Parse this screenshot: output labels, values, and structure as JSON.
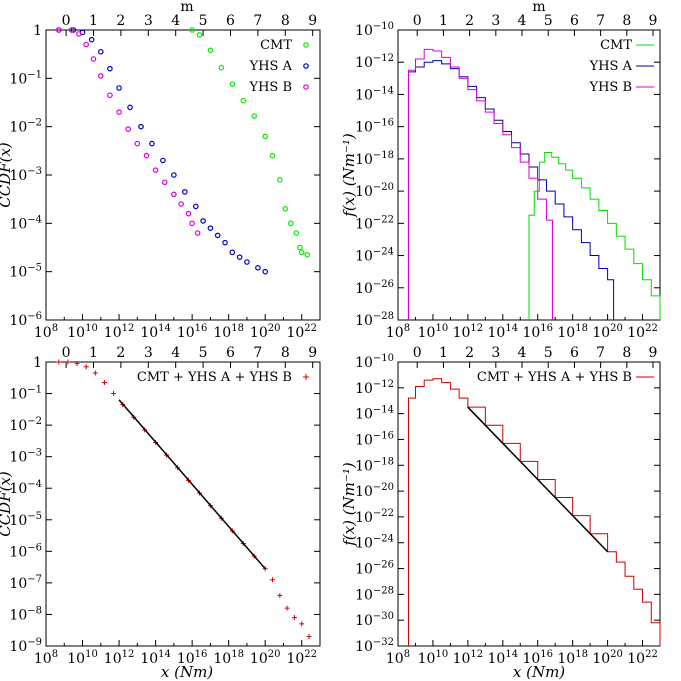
{
  "figure": {
    "top_axis_label": "m",
    "x_label_bottom": "x (Nm)",
    "top_axis_ticks": [
      "0",
      "1",
      "2",
      "3",
      "4",
      "5",
      "6",
      "7",
      "8",
      "9"
    ]
  },
  "chart_data": [
    {
      "id": "ccdf-by-catalog",
      "type": "scatter",
      "ylabel": "CCDF(x)",
      "xscale": "log",
      "yscale": "log",
      "xlim_log10": [
        8,
        23
      ],
      "ylim_log10": [
        -6,
        0
      ],
      "x_ticks": [
        "10^8",
        "10^10",
        "10^12",
        "10^14",
        "10^16",
        "10^18",
        "10^20",
        "10^22"
      ],
      "y_ticks": [
        "10^-6",
        "10^-5",
        "10^-4",
        "10^-3",
        "10^-2",
        "10^-1",
        "1"
      ],
      "top_axis": "m",
      "legend": "top-right",
      "series": [
        {
          "name": "CMT",
          "color": "#00ee00",
          "marker": "circle",
          "log10_x": [
            16.0,
            16.4,
            17.0,
            17.6,
            18.2,
            18.8,
            19.4,
            20.0,
            20.4,
            20.8,
            21.1,
            21.4,
            21.7,
            21.9,
            22.0,
            22.3
          ],
          "log10_ccdf": [
            0.0,
            -0.1,
            -0.42,
            -0.78,
            -1.12,
            -1.46,
            -1.78,
            -2.2,
            -2.6,
            -3.1,
            -3.7,
            -4.0,
            -4.2,
            -4.5,
            -4.6,
            -4.65
          ]
        },
        {
          "name": "YHS A",
          "color": "#0000cc",
          "marker": "circle",
          "log10_x": [
            8.7,
            9.5,
            10.0,
            10.5,
            11.0,
            11.5,
            12.0,
            12.6,
            13.2,
            13.8,
            14.4,
            15.0,
            15.6,
            16.2,
            16.6,
            17.0,
            17.4,
            17.8,
            18.2,
            18.6,
            19.0,
            19.6,
            20.0
          ],
          "log10_ccdf": [
            0.0,
            0.0,
            -0.05,
            -0.2,
            -0.45,
            -0.8,
            -1.2,
            -1.6,
            -2.0,
            -2.35,
            -2.7,
            -3.0,
            -3.35,
            -3.65,
            -3.95,
            -4.1,
            -4.25,
            -4.4,
            -4.6,
            -4.7,
            -4.8,
            -4.92,
            -5.0
          ]
        },
        {
          "name": "YHS B",
          "color": "#dd00dd",
          "marker": "circle",
          "log10_x": [
            8.7,
            9.4,
            9.8,
            10.2,
            10.6,
            11.0,
            11.5,
            12.0,
            12.5,
            13.0,
            13.5,
            14.0,
            14.5,
            15.0,
            15.4,
            15.8,
            16.0,
            16.3
          ],
          "log10_ccdf": [
            0.0,
            0.0,
            -0.08,
            -0.3,
            -0.6,
            -0.95,
            -1.35,
            -1.7,
            -2.05,
            -2.35,
            -2.6,
            -2.9,
            -3.15,
            -3.4,
            -3.6,
            -3.8,
            -4.0,
            -4.2
          ]
        }
      ]
    },
    {
      "id": "pdf-by-catalog",
      "type": "line",
      "ylabel": "f(x) (Nm^-1)",
      "xscale": "log",
      "yscale": "log",
      "xlim_log10": [
        8,
        23
      ],
      "ylim_log10": [
        -28,
        -10
      ],
      "x_ticks": [
        "10^8",
        "10^10",
        "10^12",
        "10^14",
        "10^16",
        "10^18",
        "10^20",
        "10^22"
      ],
      "y_ticks": [
        "10^-28",
        "10^-26",
        "10^-24",
        "10^-22",
        "10^-20",
        "10^-18",
        "10^-16",
        "10^-14",
        "10^-12",
        "10^-10"
      ],
      "top_axis": "m",
      "legend": "top-right",
      "series": [
        {
          "name": "CMT",
          "color": "#00dd00",
          "log10_x": [
            15.5,
            15.8,
            16.1,
            16.4,
            16.8,
            17.2,
            17.6,
            18.0,
            18.5,
            19.0,
            19.5,
            20.0,
            20.5,
            21.0,
            21.5,
            22.0,
            22.5,
            23.0
          ],
          "log10_f": [
            -21.5,
            -20.0,
            -18.2,
            -17.6,
            -17.9,
            -18.3,
            -18.7,
            -19.2,
            -19.8,
            -20.5,
            -21.2,
            -22.0,
            -22.8,
            -23.6,
            -24.5,
            -25.5,
            -26.5,
            -27.6
          ]
        },
        {
          "name": "YHS A",
          "color": "#0000aa",
          "log10_x": [
            8.6,
            9.0,
            9.5,
            10.0,
            10.5,
            11.0,
            11.5,
            12.0,
            12.5,
            13.0,
            13.5,
            14.0,
            14.5,
            15.0,
            15.5,
            16.0,
            16.5,
            17.0,
            17.5,
            18.0,
            18.5,
            19.0,
            19.5,
            20.0
          ],
          "log10_f": [
            -12.6,
            -12.3,
            -12.0,
            -11.9,
            -12.1,
            -12.4,
            -12.9,
            -13.5,
            -14.2,
            -14.9,
            -15.6,
            -16.3,
            -17.0,
            -17.7,
            -18.5,
            -19.3,
            -20.0,
            -20.8,
            -21.6,
            -22.4,
            -23.2,
            -24.0,
            -24.8,
            -25.5
          ]
        },
        {
          "name": "YHS B",
          "color": "#dd00dd",
          "log10_x": [
            8.6,
            9.0,
            9.5,
            10.0,
            10.5,
            11.0,
            11.5,
            12.0,
            12.5,
            13.0,
            13.5,
            14.0,
            14.5,
            15.0,
            15.5,
            16.0,
            16.5
          ],
          "log10_f": [
            -12.5,
            -11.8,
            -11.2,
            -11.3,
            -11.7,
            -12.3,
            -13.0,
            -13.7,
            -14.4,
            -15.1,
            -15.8,
            -16.5,
            -17.3,
            -18.2,
            -19.2,
            -20.5,
            -21.8
          ]
        }
      ]
    },
    {
      "id": "ccdf-combined",
      "type": "scatter",
      "ylabel": "CCDF(x)",
      "xlabel": "x (Nm)",
      "xscale": "log",
      "yscale": "log",
      "xlim_log10": [
        8,
        23
      ],
      "ylim_log10": [
        -9,
        0
      ],
      "x_ticks": [
        "10^8",
        "10^10",
        "10^12",
        "10^14",
        "10^16",
        "10^18",
        "10^20",
        "10^22"
      ],
      "y_ticks": [
        "10^-9",
        "10^-8",
        "10^-7",
        "10^-6",
        "10^-5",
        "10^-4",
        "10^-3",
        "10^-2",
        "10^-1",
        "1"
      ],
      "top_axis": "m",
      "legend": "top-right",
      "series": [
        {
          "name": "CMT + YHS A + YHS B",
          "color": "#dd0000",
          "marker": "plus",
          "log10_x": [
            8.7,
            9.2,
            9.7,
            10.2,
            10.7,
            11.2,
            11.7,
            12.2,
            12.8,
            13.4,
            14.0,
            14.6,
            15.2,
            15.8,
            16.4,
            17.0,
            17.6,
            18.2,
            18.8,
            19.4,
            20.0,
            20.4,
            20.8,
            21.2,
            21.6,
            22.0,
            22.4
          ],
          "log10_ccdf": [
            0.0,
            0.0,
            -0.05,
            -0.15,
            -0.35,
            -0.65,
            -1.0,
            -1.35,
            -1.75,
            -2.15,
            -2.55,
            -2.95,
            -3.35,
            -3.75,
            -4.15,
            -4.55,
            -4.95,
            -5.35,
            -5.75,
            -6.15,
            -6.55,
            -6.9,
            -7.4,
            -7.8,
            -8.1,
            -8.3,
            -8.7
          ]
        },
        {
          "name": "",
          "color": "#000000",
          "marker": "line",
          "log10_x": [
            12.0,
            20.0
          ],
          "log10_ccdf": [
            -1.2,
            -6.55
          ]
        }
      ]
    },
    {
      "id": "pdf-combined",
      "type": "line",
      "ylabel": "f(x) (Nm^-1)",
      "xlabel": "x (Nm)",
      "xscale": "log",
      "yscale": "log",
      "xlim_log10": [
        8,
        23
      ],
      "ylim_log10": [
        -32,
        -10
      ],
      "x_ticks": [
        "10^8",
        "10^10",
        "10^12",
        "10^14",
        "10^16",
        "10^18",
        "10^20",
        "10^22"
      ],
      "y_ticks": [
        "10^-32",
        "10^-30",
        "10^-28",
        "10^-26",
        "10^-24",
        "10^-22",
        "10^-20",
        "10^-18",
        "10^-16",
        "10^-14",
        "10^-12",
        "10^-10"
      ],
      "top_axis": "m",
      "legend": "top-right",
      "series": [
        {
          "name": "CMT + YHS A + YHS B",
          "color": "#cc0000",
          "log10_x": [
            8.6,
            9.0,
            9.5,
            10.0,
            10.5,
            11.0,
            11.5,
            12.0,
            13.0,
            14.0,
            15.0,
            16.0,
            17.0,
            18.0,
            19.0,
            20.0,
            20.5,
            21.0,
            21.5,
            22.0,
            22.5,
            23.0
          ],
          "log10_f": [
            -12.8,
            -11.9,
            -11.4,
            -11.3,
            -11.6,
            -12.1,
            -12.8,
            -13.5,
            -14.9,
            -16.3,
            -17.7,
            -19.1,
            -20.5,
            -21.9,
            -23.3,
            -24.7,
            -25.5,
            -26.6,
            -27.6,
            -28.6,
            -30.2,
            -31.7
          ]
        },
        {
          "name": "",
          "color": "#000000",
          "log10_x": [
            12.0,
            20.0
          ],
          "log10_f": [
            -13.5,
            -24.7
          ]
        }
      ]
    }
  ]
}
